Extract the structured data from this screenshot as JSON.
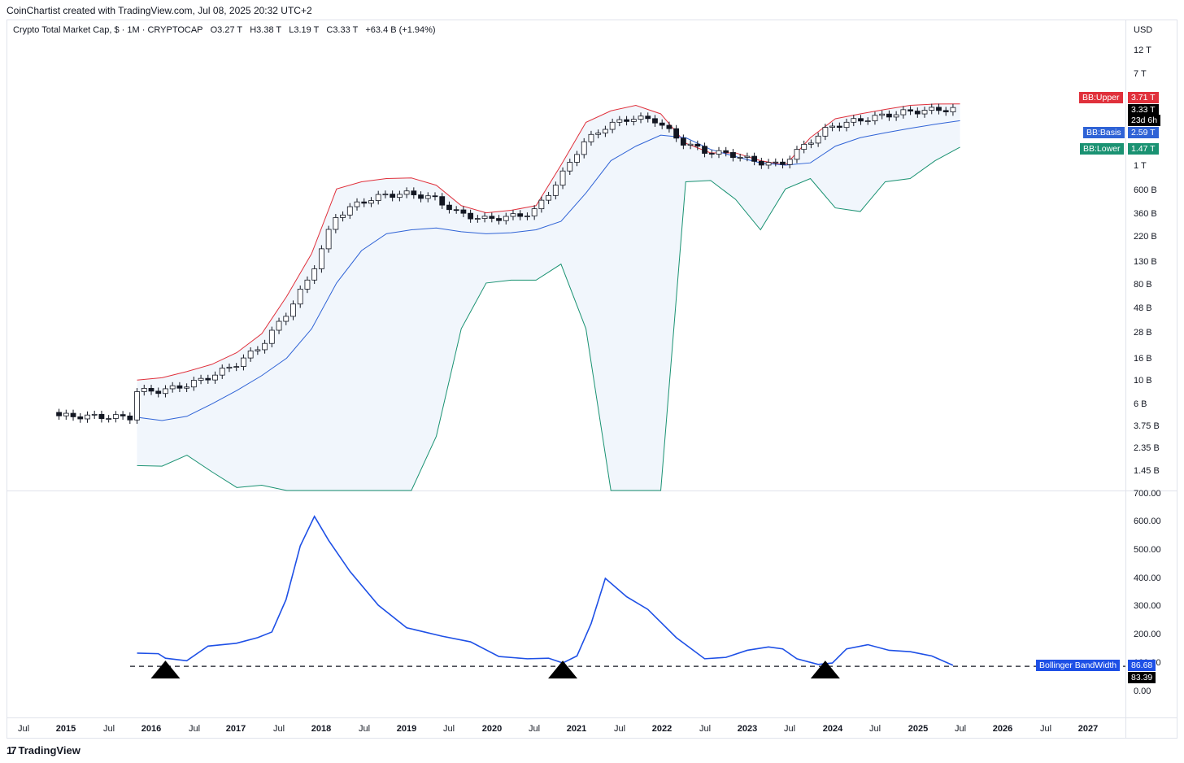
{
  "header": {
    "credit": "CoinChartist created with TradingView.com, Jul 08, 2025 20:32 UTC+2"
  },
  "legend": {
    "symbol": "Crypto Total Market Cap, $ · 1M · CRYPTOCAP",
    "open": "O3.27 T",
    "high": "H3.38 T",
    "low": "L3.19 T",
    "close": "C3.33 T",
    "change": "+63.4 B (+1.94%)"
  },
  "currency": "USD",
  "branding": {
    "label": "TradingView",
    "icon": "tradingview-logo-icon"
  },
  "colors": {
    "upper": "#e0303b",
    "basis": "#2f63d6",
    "lower": "#1a9272",
    "bandwidth": "#1e50e6",
    "fill": "#f1f6fc"
  },
  "labels": {
    "bb_upper_name": "BB:Upper",
    "bb_upper_value": "3.71 T",
    "last_price": "3.33 T",
    "countdown": "23d 6h",
    "bb_basis_name": "BB:Basis",
    "bb_basis_value": "2.59 T",
    "bb_lower_name": "BB:Lower",
    "bb_lower_value": "1.47 T",
    "bandwidth_name": "Bollinger BandWidth",
    "bandwidth_value": "86.68",
    "threshold_value": "83.39"
  },
  "chart_data": [
    {
      "type": "candlestick",
      "scale": "log",
      "price_axis_ticks": [
        "12 T",
        "7 T",
        "1 T",
        "600 B",
        "360 B",
        "220 B",
        "130 B",
        "80 B",
        "48 B",
        "28 B",
        "16 B",
        "10 B",
        "6 B",
        "3.75 B",
        "2.35 B",
        "1.45 B"
      ],
      "time_axis_ticks": [
        "Jul",
        "2015",
        "Jul",
        "2016",
        "Jul",
        "2017",
        "Jul",
        "2018",
        "Jul",
        "2019",
        "Jul",
        "2020",
        "Jul",
        "2021",
        "Jul",
        "2022",
        "Jul",
        "2023",
        "Jul",
        "2024",
        "Jul",
        "2025",
        "Jul",
        "2026",
        "Jul",
        "2027"
      ],
      "series": [
        {
          "name": "BB:Upper",
          "values": [
            10.0,
            10.5,
            12.0,
            14.0,
            18.0,
            27.0,
            60.0,
            150.0,
            600.0,
            700.0,
            750.0,
            760.0,
            650.0,
            420.0,
            360.0,
            380.0,
            420.0,
            1000.0,
            2500.0,
            3200.0,
            3600.0,
            3000.0,
            1600.0,
            1300.0,
            1300.0,
            1100.0,
            1000.0,
            1800.0,
            2700.0,
            3000.0,
            3300.0,
            3600.0,
            3700.0,
            3710.0
          ]
        },
        {
          "name": "BB:Basis",
          "values": [
            4.5,
            4.2,
            4.6,
            6.0,
            8.0,
            11.0,
            16.0,
            30.0,
            80.0,
            160.0,
            230.0,
            250.0,
            260.0,
            240.0,
            230.0,
            235.0,
            250.0,
            300.0,
            550.0,
            1100.0,
            1500.0,
            1900.0,
            1800.0,
            1400.0,
            1200.0,
            1050.0,
            1000.0,
            1050.0,
            1500.0,
            1800.0,
            2000.0,
            2200.0,
            2400.0,
            2590.0
          ]
        },
        {
          "name": "BB:Lower",
          "values": [
            1.6,
            1.58,
            2.0,
            1.4,
            1.0,
            1.05,
            0.9,
            0.6,
            0.3,
            0.1,
            0.02,
            0.05,
            3.0,
            30.0,
            80.0,
            85.0,
            85.0,
            120.0,
            30.0,
            0.5,
            0.2,
            0.2,
            700.0,
            720.0,
            480.0,
            250.0,
            600.0,
            750.0,
            400.0,
            370.0,
            700.0,
            750.0,
            1100.0,
            1470.0
          ]
        }
      ],
      "last_close": 3.33,
      "units": "billion USD"
    },
    {
      "type": "line",
      "name": "Bollinger BandWidth",
      "y_axis_ticks": [
        "700.00",
        "600.00",
        "500.00",
        "400.00",
        "300.00",
        "200.00",
        "100.00",
        "0.00"
      ],
      "x": [
        "2015-11",
        "2016-02",
        "2016-03",
        "2016-06",
        "2016-09",
        "2017-01",
        "2017-04",
        "2017-06",
        "2017-08",
        "2017-10",
        "2017-12",
        "2018-02",
        "2018-05",
        "2018-09",
        "2019-01",
        "2019-06",
        "2019-10",
        "2020-02",
        "2020-06",
        "2020-09",
        "2020-11",
        "2021-01",
        "2021-03",
        "2021-05",
        "2021-08",
        "2021-11",
        "2022-03",
        "2022-07",
        "2022-10",
        "2023-01",
        "2023-04",
        "2023-06",
        "2023-08",
        "2023-11",
        "2024-01",
        "2024-03",
        "2024-06",
        "2024-09",
        "2024-12",
        "2025-03",
        "2025-06"
      ],
      "values": [
        130,
        128,
        112,
        103,
        155,
        165,
        185,
        205,
        320,
        510,
        615,
        530,
        420,
        300,
        220,
        190,
        170,
        118,
        110,
        112,
        95,
        120,
        235,
        395,
        330,
        285,
        185,
        110,
        115,
        140,
        152,
        145,
        110,
        90,
        95,
        145,
        160,
        140,
        135,
        120,
        87
      ],
      "threshold": 83.39,
      "threshold_style": "dashed",
      "markers": [
        {
          "x": "2016-03",
          "shape": "triangle-up"
        },
        {
          "x": "2020-11",
          "shape": "triangle-up"
        },
        {
          "x": "2023-12",
          "shape": "triangle-up"
        }
      ],
      "ylim": [
        0,
        700
      ]
    }
  ]
}
